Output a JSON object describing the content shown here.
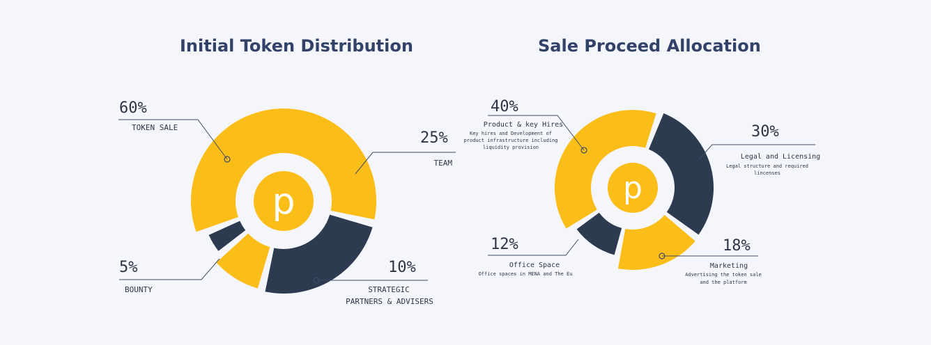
{
  "colors": {
    "yellow": "#fbbd18",
    "navy": "#2c3b50",
    "background": "#f4f6fb",
    "title": "#324268",
    "ring_inner": "#f4f6fb"
  },
  "chart_data": [
    {
      "type": "pie",
      "title": "Initial Token Distribution",
      "center_logo": "p",
      "slices": [
        {
          "label": "TOKEN SALE",
          "value": 60,
          "display": "60%",
          "color": "yellow"
        },
        {
          "label": "TEAM",
          "value": 25,
          "display": "25%",
          "color": "navy"
        },
        {
          "label": "STRATEGIC PARTNERS & ADVISERS",
          "value": 10,
          "display": "10%",
          "color": "yellow"
        },
        {
          "label": "BOUNTY",
          "value": 5,
          "display": "5%",
          "color": "navy"
        }
      ]
    },
    {
      "type": "pie",
      "title": "Sale Proceed Allocation",
      "center_logo": "p",
      "slices": [
        {
          "label": "Product & key Hires",
          "description": "Key hires and Development of product infrastructure including liquidity provision",
          "value": 40,
          "display": "40%",
          "color": "yellow"
        },
        {
          "label": "Legal and Licensing",
          "description": "Legal structure and required lincenses",
          "value": 30,
          "display": "30%",
          "color": "navy"
        },
        {
          "label": "Marketing",
          "description": "Advertising the token sale and the platform",
          "value": 18,
          "display": "18%",
          "color": "yellow"
        },
        {
          "label": "Office Space",
          "description": "Office spaces in MENA and The Eu",
          "value": 12,
          "display": "12%",
          "color": "navy"
        }
      ]
    }
  ],
  "labels": {
    "left": {
      "token_sale_pct": "60%",
      "token_sale": "TOKEN SALE",
      "team_pct": "25%",
      "team": "TEAM",
      "strategic_pct": "10%",
      "strategic_line1": "STRATEGIC",
      "strategic_line2": "PARTNERS & ADVISERS",
      "bounty_pct": "5%",
      "bounty": "BOUNTY"
    },
    "right": {
      "product_pct": "40%",
      "product": "Product & key Hires",
      "product_desc1": "Key hires and Development of",
      "product_desc2": "product infrastructure including",
      "product_desc3": "liquidity provision",
      "legal_pct": "30%",
      "legal": "Legal and Licensing",
      "legal_desc1": "Legal structure and required",
      "legal_desc2": "lincenses",
      "marketing_pct": "18%",
      "marketing": "Marketing",
      "marketing_desc1": "Advertising the token sale",
      "marketing_desc2": "and the platform",
      "office_pct": "12%",
      "office": "Office Space",
      "office_desc1": "Office spaces in MENA and The Eu"
    }
  }
}
